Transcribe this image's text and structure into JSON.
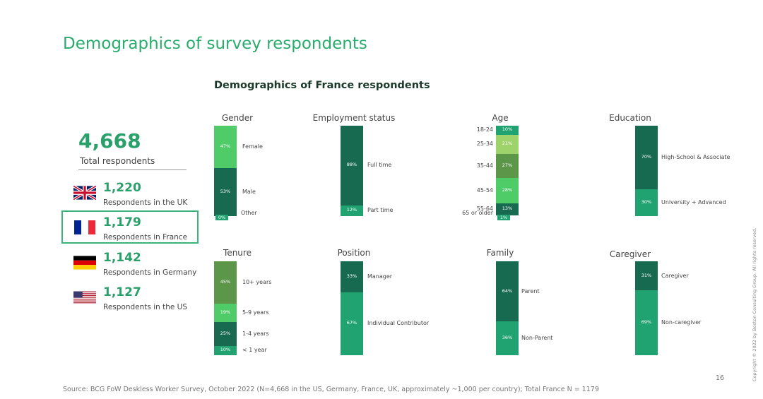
{
  "title": "Demographics of survey respondents",
  "subtitle": "Demographics of France respondents",
  "summary": {
    "total_value": "4,668",
    "total_label": "Total respondents",
    "countries": [
      {
        "value": "1,220",
        "label": "Respondents in the UK",
        "flag": "uk-flag-icon"
      },
      {
        "value": "1,179",
        "label": "Respondents in France",
        "flag": "france-flag-icon",
        "highlighted": true
      },
      {
        "value": "1,142",
        "label": "Respondents in Germany",
        "flag": "germany-flag-icon"
      },
      {
        "value": "1,127",
        "label": "Respondents in the US",
        "flag": "us-flag-icon"
      }
    ]
  },
  "colors": {
    "title": "#29ab6b",
    "dark_green": "#176a50",
    "medium_green": "#20a271",
    "light_green": "#4fcb68",
    "olive_green": "#5c9648",
    "pale_green": "#9ed26a"
  },
  "chart_data": [
    {
      "type": "stacked-bar",
      "title": "Gender",
      "segments": [
        {
          "name": "Female",
          "value": 47,
          "label": "47%",
          "color": "#4fcb68"
        },
        {
          "name": "Male",
          "value": 53,
          "label": "53%",
          "color": "#176a50"
        },
        {
          "name": "Other",
          "value": 0,
          "label": "0%",
          "color": "#20a271"
        }
      ]
    },
    {
      "type": "stacked-bar",
      "title": "Employment status",
      "segments": [
        {
          "name": "Full time",
          "value": 88,
          "label": "88%",
          "color": "#176a50"
        },
        {
          "name": "Part time",
          "value": 12,
          "label": "12%",
          "color": "#20a271"
        }
      ]
    },
    {
      "type": "stacked-bar",
      "title": "Age",
      "segments": [
        {
          "name": "18-24",
          "value": 10,
          "label": "10%",
          "color": "#20a271"
        },
        {
          "name": "25-34",
          "value": 21,
          "label": "21%",
          "color": "#9ed26a"
        },
        {
          "name": "35-44",
          "value": 27,
          "label": "27%",
          "color": "#5c9648"
        },
        {
          "name": "45-54",
          "value": 28,
          "label": "28%",
          "color": "#4fcb68"
        },
        {
          "name": "55-64",
          "value": 13,
          "label": "13%",
          "color": "#176a50"
        },
        {
          "name": "65 or older",
          "value": 1,
          "label": "1%",
          "color": "#20a271"
        }
      ]
    },
    {
      "type": "stacked-bar",
      "title": "Education",
      "segments": [
        {
          "name": "High-School & Associate",
          "value": 70,
          "label": "70%",
          "color": "#176a50"
        },
        {
          "name": "University + Advanced",
          "value": 30,
          "label": "30%",
          "color": "#20a271"
        }
      ]
    },
    {
      "type": "stacked-bar",
      "title": "Tenure",
      "segments": [
        {
          "name": "10+ years",
          "value": 45,
          "label": "45%",
          "color": "#5c9648"
        },
        {
          "name": "5-9 years",
          "value": 19,
          "label": "19%",
          "color": "#4fcb68"
        },
        {
          "name": "1-4 years",
          "value": 25,
          "label": "25%",
          "color": "#176a50"
        },
        {
          "name": "< 1 year",
          "value": 10,
          "label": "10%",
          "color": "#20a271"
        }
      ]
    },
    {
      "type": "stacked-bar",
      "title": "Position",
      "segments": [
        {
          "name": "Manager",
          "value": 33,
          "label": "33%",
          "color": "#176a50"
        },
        {
          "name": "Individual Contributor",
          "value": 67,
          "label": "67%",
          "color": "#20a271"
        }
      ]
    },
    {
      "type": "stacked-bar",
      "title": "Family",
      "segments": [
        {
          "name": "Parent",
          "value": 64,
          "label": "64%",
          "color": "#176a50"
        },
        {
          "name": "Non-Parent",
          "value": 36,
          "label": "36%",
          "color": "#20a271"
        }
      ]
    },
    {
      "type": "stacked-bar",
      "title": "Caregiver",
      "segments": [
        {
          "name": "Caregiver",
          "value": 31,
          "label": "31%",
          "color": "#176a50"
        },
        {
          "name": "Non-caregiver",
          "value": 69,
          "label": "69%",
          "color": "#20a271"
        }
      ]
    }
  ],
  "source": "Source: BCG FoW Deskless Worker Survey, October 2022  (N=4,668 in the US, Germany, France, UK, approximately ~1,000 per country); Total France N = 1179",
  "page_number": "16",
  "copyright": "Copyright © 2022 by Boston Consulting Group. All rights reserved."
}
